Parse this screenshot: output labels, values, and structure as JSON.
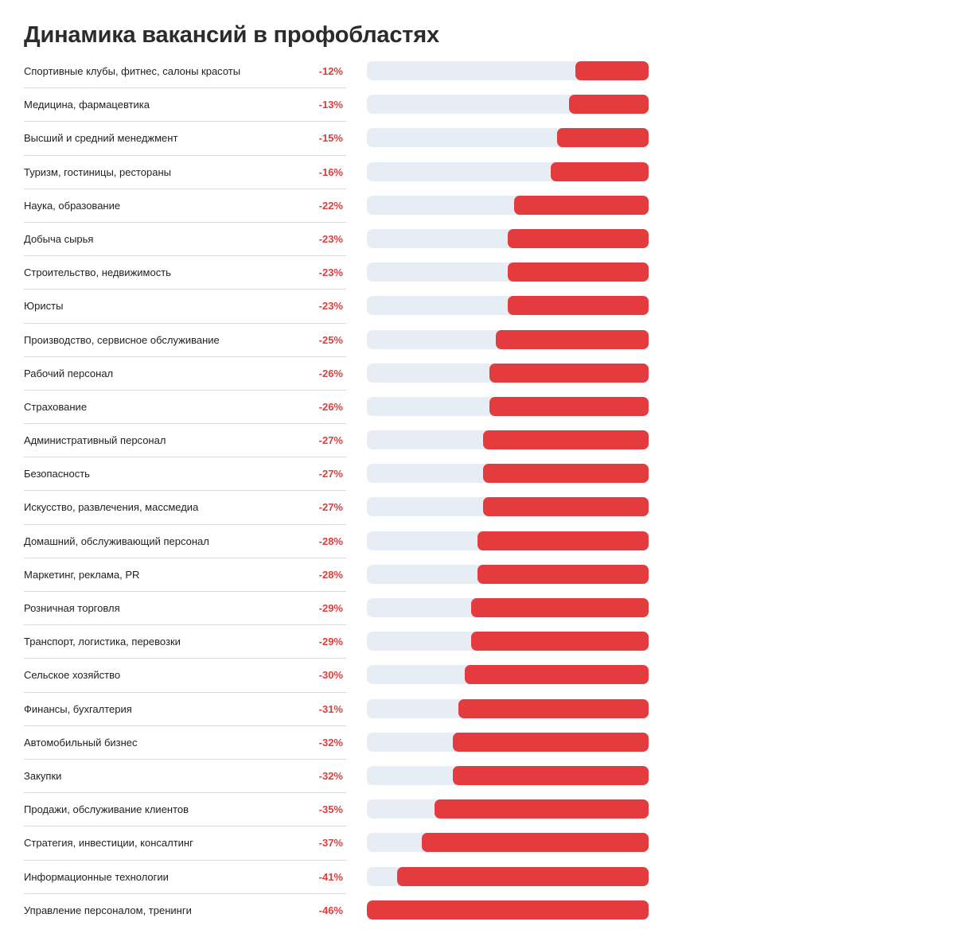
{
  "title": "Динамика вакансий в профобластях",
  "chart_data": {
    "type": "bar",
    "orientation": "horizontal",
    "title": "Динамика вакансий в профобластях",
    "xlim": [
      0,
      -46
    ],
    "colors": {
      "bar": "#e33b3e",
      "track": "#e6edf4",
      "value_text": "#e03c3c"
    },
    "rows": [
      {
        "category": "Спортивные клубы, фитнес, салоны красоты",
        "value": -12,
        "label": "-12%"
      },
      {
        "category": "Медицина, фармацевтика",
        "value": -13,
        "label": "-13%"
      },
      {
        "category": "Высший и средний менеджмент",
        "value": -15,
        "label": "-15%"
      },
      {
        "category": "Туризм, гостиницы, рестораны",
        "value": -16,
        "label": "-16%"
      },
      {
        "category": "Наука, образование",
        "value": -22,
        "label": "-22%"
      },
      {
        "category": "Добыча сырья",
        "value": -23,
        "label": "-23%"
      },
      {
        "category": "Строительство, недвижимость",
        "value": -23,
        "label": "-23%"
      },
      {
        "category": "Юристы",
        "value": -23,
        "label": "-23%"
      },
      {
        "category": "Производство, сервисное обслуживание",
        "value": -25,
        "label": "-25%"
      },
      {
        "category": "Рабочий персонал",
        "value": -26,
        "label": "-26%"
      },
      {
        "category": "Страхование",
        "value": -26,
        "label": "-26%"
      },
      {
        "category": "Административный персонал",
        "value": -27,
        "label": "-27%"
      },
      {
        "category": "Безопасность",
        "value": -27,
        "label": "-27%"
      },
      {
        "category": "Искусство, развлечения, массмедиа",
        "value": -27,
        "label": "-27%"
      },
      {
        "category": "Домашний, обслуживающий персонал",
        "value": -28,
        "label": "-28%"
      },
      {
        "category": "Маркетинг, реклама, PR",
        "value": -28,
        "label": "-28%"
      },
      {
        "category": "Розничная торговля",
        "value": -29,
        "label": "-29%"
      },
      {
        "category": "Транспорт, логистика, перевозки",
        "value": -29,
        "label": "-29%"
      },
      {
        "category": "Сельское хозяйство",
        "value": -30,
        "label": "-30%"
      },
      {
        "category": "Финансы, бухгалтерия",
        "value": -31,
        "label": "-31%"
      },
      {
        "category": "Автомобильный бизнес",
        "value": -32,
        "label": "-32%"
      },
      {
        "category": "Закупки",
        "value": -32,
        "label": "-32%"
      },
      {
        "category": "Продажи, обслуживание клиентов",
        "value": -35,
        "label": "-35%"
      },
      {
        "category": "Стратегия, инвестиции, консалтинг",
        "value": -37,
        "label": "-37%"
      },
      {
        "category": "Информационные технологии",
        "value": -41,
        "label": "-41%"
      },
      {
        "category": "Управление персоналом, тренинги",
        "value": -46,
        "label": "-46%"
      }
    ]
  }
}
